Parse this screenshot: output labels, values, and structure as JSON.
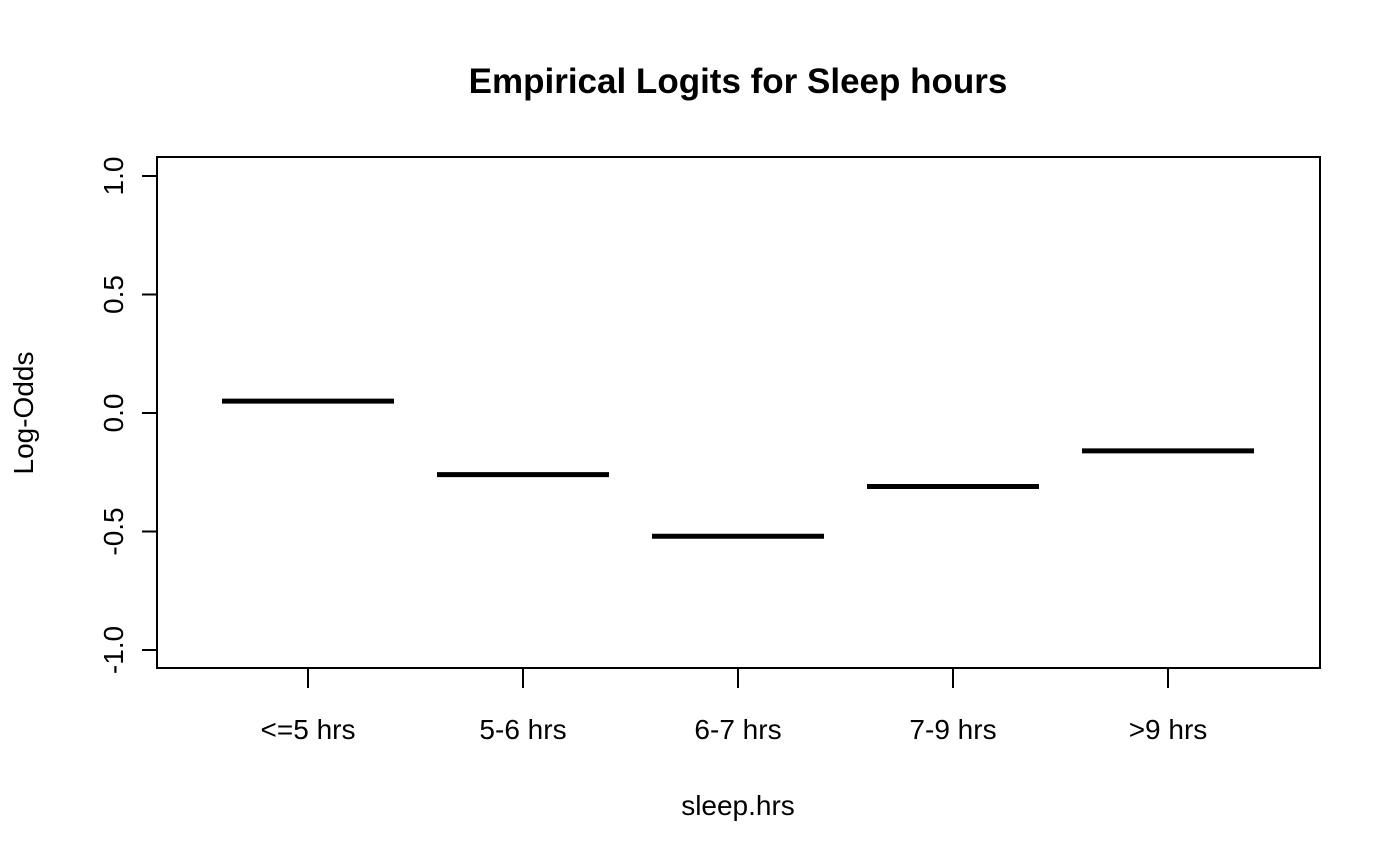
{
  "chart_data": {
    "type": "bar",
    "title": "Empirical Logits for Sleep hours",
    "xlabel": "sleep.hrs",
    "ylabel": "Log-Odds",
    "categories": [
      "<=5 hrs",
      "5-6 hrs",
      "6-7 hrs",
      "7-9 hrs",
      ">9 hrs"
    ],
    "values": [
      0.05,
      -0.26,
      -0.52,
      -0.31,
      -0.16
    ],
    "ylim": [
      -1.0,
      1.0
    ],
    "yticks": [
      -1.0,
      -0.5,
      0.0,
      0.5,
      1.0
    ],
    "ytick_labels": [
      "-1.0",
      "-0.5",
      "0.0",
      "0.5",
      "1.0"
    ],
    "grid": false,
    "colors": {
      "line": "#000000",
      "background": "#ffffff"
    }
  }
}
